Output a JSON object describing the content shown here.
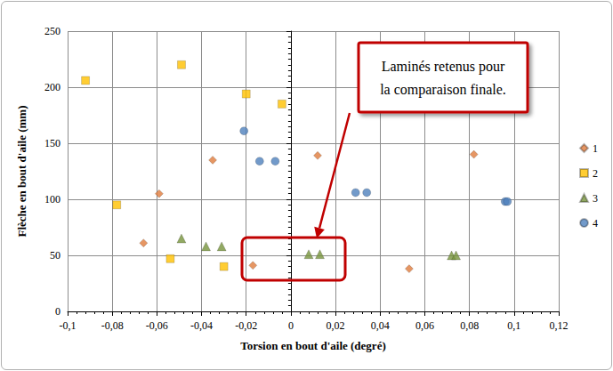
{
  "chart_data": {
    "type": "scatter",
    "x_label": "Torsion en bout d'aile (degré)",
    "y_label": "Flèche en bout d'aile (mm)",
    "xlim": [
      -0.1,
      0.12
    ],
    "xticks": [
      {
        "value": -0.1,
        "label": "-0,1"
      },
      {
        "value": -0.08,
        "label": "-0,08"
      },
      {
        "value": -0.06,
        "label": "-0,06"
      },
      {
        "value": -0.04,
        "label": "-0,04"
      },
      {
        "value": -0.02,
        "label": "-0,02"
      },
      0,
      {
        "value": 0.02,
        "label": "0,02"
      },
      {
        "value": 0.04,
        "label": "0,04"
      },
      {
        "value": 0.06,
        "label": "0,06"
      },
      {
        "value": 0.08,
        "label": "0,08"
      },
      {
        "value": 0.1,
        "label": "0,1"
      },
      {
        "value": 0.12,
        "label": "0,12"
      }
    ],
    "ylim": [
      0,
      250
    ],
    "yticks": [
      0,
      50,
      100,
      150,
      200,
      250
    ],
    "grid": true,
    "legend": "right",
    "annotations": [
      {
        "text": "Laminés retenus pour\nla comparaison finale."
      }
    ],
    "series": [
      {
        "name": "1",
        "color": "#E07C3C",
        "marker": "diamond",
        "x": [
          -0.059,
          -0.066,
          -0.035,
          -0.017,
          0.012,
          0.053,
          0.082
        ],
        "values": [
          105,
          61,
          135,
          41,
          139,
          38,
          140
        ]
      },
      {
        "name": "2",
        "color": "#FFC000",
        "marker": "square",
        "x": [
          -0.092,
          -0.049,
          -0.078,
          -0.054,
          -0.03,
          -0.02,
          -0.004
        ],
        "values": [
          206,
          220,
          95,
          47,
          40,
          194,
          185
        ]
      },
      {
        "name": "3",
        "color": "#77933C",
        "marker": "triangle",
        "x": [
          -0.049,
          -0.038,
          -0.031,
          0.008,
          0.013,
          0.072,
          0.074
        ],
        "values": [
          65,
          58,
          58,
          51,
          51,
          50,
          50
        ]
      },
      {
        "name": "4",
        "color": "#4F81BD",
        "marker": "circle",
        "x": [
          -0.021,
          -0.014,
          -0.007,
          0.029,
          0.034,
          0.096,
          0.097
        ],
        "values": [
          161,
          134,
          134,
          106,
          106,
          98,
          98
        ]
      }
    ]
  }
}
